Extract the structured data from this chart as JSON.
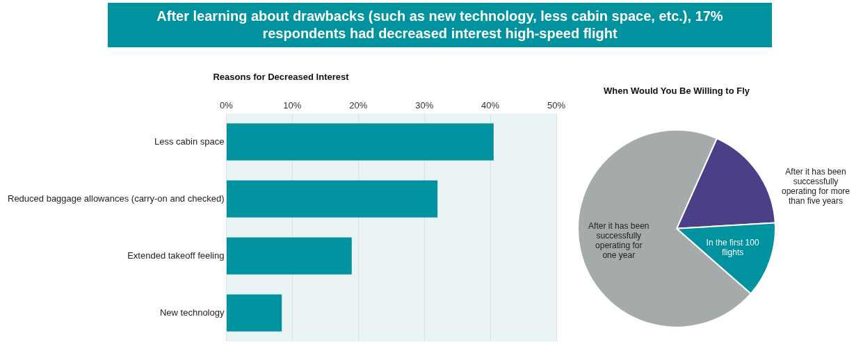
{
  "chart_data": [
    {
      "type": "other",
      "title": "After learning about drawbacks (such as new technology, less cabin space, etc.), 17% respondents had decreased interest high-speed flight"
    },
    {
      "type": "bar",
      "title": "Reasons for Decreased Interest",
      "orientation": "horizontal",
      "categories": [
        "Less cabin space",
        "Reduced baggage allowances (carry-on and checked)",
        "Extended takeoff feeling",
        "New technology"
      ],
      "values": [
        40.5,
        32,
        19,
        8.4
      ],
      "color": "#00929f",
      "xlim": [
        0,
        50
      ],
      "xticks": [
        {
          "value": 0,
          "label": "0%"
        },
        {
          "value": 10,
          "label": "10%"
        },
        {
          "value": 20,
          "label": "20%"
        },
        {
          "value": 30,
          "label": "30%"
        },
        {
          "value": 40,
          "label": "40%"
        },
        {
          "value": 50,
          "label": "50%"
        }
      ],
      "grid": "x",
      "legend": false
    },
    {
      "type": "pie",
      "title": "When Would You Be Willing to Fly",
      "categories": [
        "After it has been successfully operating for more than five years",
        "In the first 100 flights",
        "After it has been successfully operating for one year"
      ],
      "values": [
        17.4,
        12.4,
        70.2
      ],
      "colors": [
        "#4b3f87",
        "#00929f",
        "#a5aaab"
      ],
      "legend": false
    }
  ]
}
